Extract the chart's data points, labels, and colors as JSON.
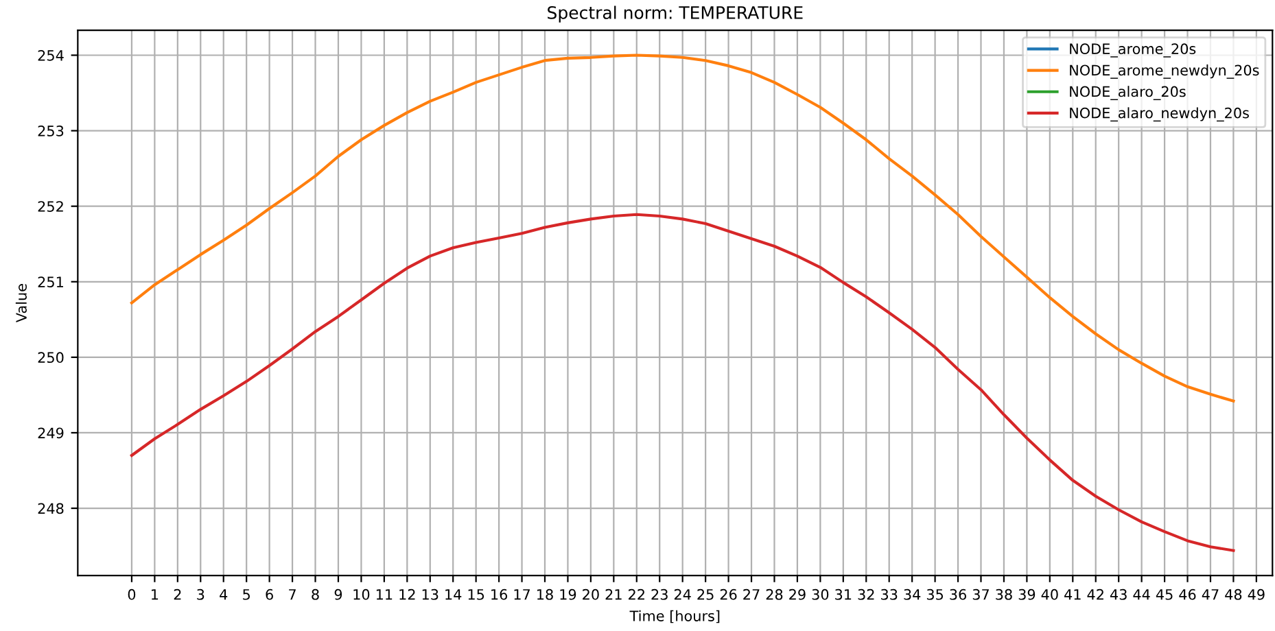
{
  "chart_data": {
    "type": "line",
    "title": "Spectral norm: TEMPERATURE",
    "xlabel": "Time [hours]",
    "ylabel": "Value",
    "x": [
      0,
      1,
      2,
      3,
      4,
      5,
      6,
      7,
      8,
      9,
      10,
      11,
      12,
      13,
      14,
      15,
      16,
      17,
      18,
      19,
      20,
      21,
      22,
      23,
      24,
      25,
      26,
      27,
      28,
      29,
      30,
      31,
      32,
      33,
      34,
      35,
      36,
      37,
      38,
      39,
      40,
      41,
      42,
      43,
      44,
      45,
      46,
      47,
      48
    ],
    "series": [
      {
        "name": "NODE_arome_20s",
        "color": "#1f77b4",
        "values": [
          null,
          null,
          null,
          null,
          null,
          null,
          null,
          null,
          null,
          null,
          null,
          null,
          null,
          null,
          null,
          null,
          null,
          null,
          null,
          null,
          null,
          null,
          null,
          null,
          null,
          null,
          null,
          null,
          null,
          null,
          null,
          null,
          null,
          null,
          null,
          null,
          null,
          null,
          null,
          null,
          null,
          null,
          null,
          null,
          null,
          null,
          null,
          null,
          null
        ]
      },
      {
        "name": "NODE_arome_newdyn_20s",
        "color": "#ff7f0e",
        "values": [
          250.72,
          250.96,
          251.16,
          251.36,
          251.55,
          251.75,
          251.97,
          252.18,
          252.4,
          252.66,
          252.88,
          253.07,
          253.24,
          253.39,
          253.51,
          253.64,
          253.74,
          253.84,
          253.93,
          253.96,
          253.97,
          253.99,
          254.0,
          253.99,
          253.97,
          253.93,
          253.86,
          253.77,
          253.64,
          253.48,
          253.31,
          253.1,
          252.88,
          252.63,
          252.4,
          252.15,
          251.89,
          251.6,
          251.33,
          251.06,
          250.79,
          250.54,
          250.31,
          250.1,
          249.92,
          249.75,
          249.61,
          249.51,
          249.42
        ]
      },
      {
        "name": "NODE_alaro_20s",
        "color": "#2ca02c",
        "values": [
          null,
          null,
          null,
          null,
          null,
          null,
          null,
          null,
          null,
          null,
          null,
          null,
          null,
          null,
          null,
          null,
          null,
          null,
          null,
          null,
          null,
          null,
          null,
          null,
          null,
          null,
          null,
          null,
          null,
          null,
          null,
          null,
          null,
          null,
          null,
          null,
          null,
          null,
          null,
          null,
          null,
          null,
          null,
          null,
          null,
          null,
          null,
          null,
          null
        ]
      },
      {
        "name": "NODE_alaro_newdyn_20s",
        "color": "#d62728",
        "values": [
          248.7,
          248.92,
          249.11,
          249.31,
          249.49,
          249.68,
          249.89,
          250.11,
          250.34,
          250.54,
          250.76,
          250.98,
          251.18,
          251.34,
          251.45,
          251.52,
          251.58,
          251.64,
          251.72,
          251.78,
          251.83,
          251.87,
          251.89,
          251.87,
          251.83,
          251.77,
          251.67,
          251.57,
          251.47,
          251.34,
          251.19,
          250.99,
          250.8,
          250.59,
          250.37,
          250.13,
          249.84,
          249.57,
          249.24,
          248.93,
          248.64,
          248.37,
          248.16,
          247.98,
          247.82,
          247.69,
          247.57,
          247.49,
          247.44
        ]
      }
    ],
    "xlim": [
      -2.35,
      49.7
    ],
    "xticks": [
      0,
      1,
      2,
      3,
      4,
      5,
      6,
      7,
      8,
      9,
      10,
      11,
      12,
      13,
      14,
      15,
      16,
      17,
      18,
      19,
      20,
      21,
      22,
      23,
      24,
      25,
      26,
      27,
      28,
      29,
      30,
      31,
      32,
      33,
      34,
      35,
      36,
      37,
      38,
      39,
      40,
      41,
      42,
      43,
      44,
      45,
      46,
      47,
      48,
      49
    ],
    "ylim": [
      247.11,
      254.33
    ],
    "yticks": [
      248,
      249,
      250,
      251,
      252,
      253,
      254
    ],
    "grid": true,
    "legend": "top right",
    "marker": "none",
    "line_style": "solid"
  }
}
